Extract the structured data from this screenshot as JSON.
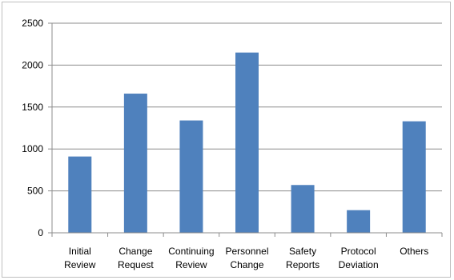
{
  "chart_data": {
    "type": "bar",
    "title": "",
    "xlabel": "",
    "ylabel": "",
    "categories": [
      [
        "Initial",
        "Review"
      ],
      [
        "Change",
        "Request"
      ],
      [
        "Continuing",
        "Review"
      ],
      [
        "Personnel",
        "Change"
      ],
      [
        "Safety",
        "Reports"
      ],
      [
        "Protocol",
        "Deviation"
      ],
      [
        "Others"
      ]
    ],
    "values": [
      910,
      1660,
      1340,
      2150,
      570,
      270,
      1330
    ],
    "ylim": [
      0,
      2500
    ],
    "yticks": [
      "0",
      "500",
      "1000",
      "1500",
      "2000",
      "2500"
    ],
    "grid": true,
    "legend": "none",
    "colors": {
      "bar": "#4f81bd",
      "grid": "#8c8c8c",
      "axis": "#8c8c8c"
    }
  }
}
